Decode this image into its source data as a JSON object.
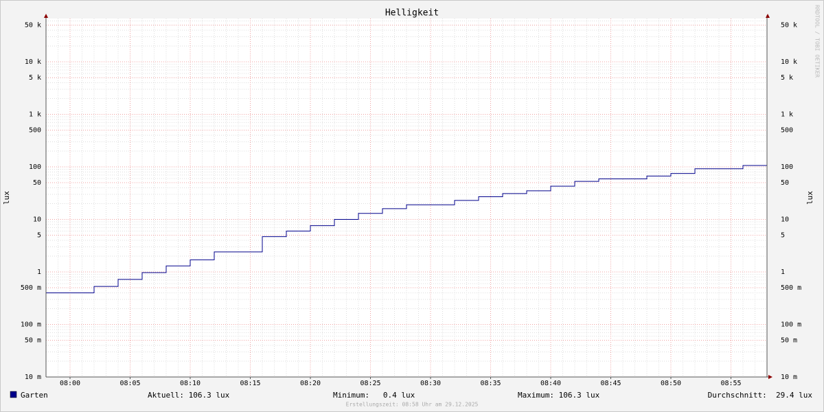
{
  "chart_data": {
    "type": "line",
    "step": "post",
    "title": "Helligkeit",
    "y_label": "lux",
    "x": [
      "07:58",
      "08:02",
      "08:04",
      "08:06",
      "08:08",
      "08:10",
      "08:12",
      "08:16",
      "08:18",
      "08:20",
      "08:22",
      "08:24",
      "08:26",
      "08:28",
      "08:32",
      "08:34",
      "08:36",
      "08:38",
      "08:40",
      "08:42",
      "08:44",
      "08:48",
      "08:50",
      "08:52",
      "08:56",
      "08:58"
    ],
    "series": [
      {
        "name": "Garten",
        "color": "#00008b",
        "values": [
          0.4,
          0.53,
          0.72,
          0.97,
          1.3,
          1.7,
          2.4,
          4.7,
          6,
          7.6,
          10,
          13,
          16,
          19,
          23,
          27,
          31,
          35,
          43,
          53,
          59,
          67,
          75,
          92,
          106.3,
          106.3
        ]
      }
    ],
    "xlim": [
      "07:58",
      "08:58"
    ],
    "xticks": [
      "08:00",
      "08:05",
      "08:10",
      "08:15",
      "08:20",
      "08:25",
      "08:30",
      "08:35",
      "08:40",
      "08:45",
      "08:50",
      "08:55"
    ],
    "ylim": [
      0.01,
      66700
    ],
    "log_scale": true,
    "grid": true,
    "minor_grid": true,
    "yticks": [
      {
        "value": 0.01,
        "label": "10 m"
      },
      {
        "value": 0.05,
        "label": "50 m"
      },
      {
        "value": 0.1,
        "label": "100 m"
      },
      {
        "value": 0.5,
        "label": "500 m"
      },
      1,
      5,
      10,
      50,
      100,
      500,
      {
        "value": 1000,
        "label": "1 k"
      },
      {
        "value": 5000,
        "label": "5 k"
      },
      {
        "value": 10000,
        "label": "10 k"
      },
      {
        "value": 50000,
        "label": "50 k"
      }
    ],
    "stats": [
      "Aktuell: 106.3 lux",
      "Minimum:   0.4 lux",
      "Maximum: 106.3 lux",
      "Durchschnitt:  29.4 lux"
    ],
    "footer": "Erstellungszeit: 08:58 Uhr am 29.12.2025",
    "watermark": "RRDTOOL / TOBI OETIKER"
  }
}
